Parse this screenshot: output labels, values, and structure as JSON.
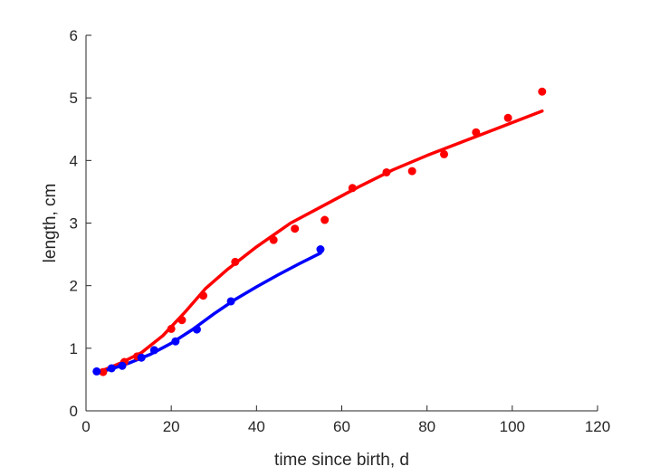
{
  "chart_data": {
    "type": "scatter",
    "title": "",
    "xlabel": "time since birth, d",
    "ylabel": "length, cm",
    "xlim": [
      0,
      120
    ],
    "ylim": [
      0,
      6
    ],
    "xticks": [
      0,
      20,
      40,
      60,
      80,
      100,
      120
    ],
    "yticks": [
      0,
      1,
      2,
      3,
      4,
      5,
      6
    ],
    "grid": false,
    "legend": "none",
    "series": [
      {
        "color": "#ff0000",
        "points": [
          [
            4,
            0.62
          ],
          [
            9,
            0.78
          ],
          [
            12,
            0.87
          ],
          [
            20,
            1.31
          ],
          [
            22.5,
            1.45
          ],
          [
            27.5,
            1.84
          ],
          [
            35,
            2.38
          ],
          [
            44,
            2.73
          ],
          [
            49,
            2.91
          ],
          [
            56,
            3.05
          ],
          [
            62.5,
            3.56
          ],
          [
            70.5,
            3.81
          ],
          [
            76.5,
            3.83
          ],
          [
            84,
            4.1
          ],
          [
            91.5,
            4.45
          ],
          [
            99,
            4.68
          ],
          [
            107,
            5.1
          ]
        ],
        "fit": [
          [
            3,
            0.62
          ],
          [
            8,
            0.76
          ],
          [
            13,
            0.93
          ],
          [
            18,
            1.2
          ],
          [
            23,
            1.56
          ],
          [
            28,
            1.95
          ],
          [
            33,
            2.25
          ],
          [
            40,
            2.62
          ],
          [
            48,
            3.0
          ],
          [
            56,
            3.29
          ],
          [
            64,
            3.58
          ],
          [
            72,
            3.85
          ],
          [
            80,
            4.08
          ],
          [
            88,
            4.29
          ],
          [
            96,
            4.5
          ],
          [
            107,
            4.79
          ]
        ]
      },
      {
        "color": "#0000ff",
        "points": [
          [
            2.5,
            0.63
          ],
          [
            6,
            0.68
          ],
          [
            8.5,
            0.72
          ],
          [
            13,
            0.85
          ],
          [
            16,
            0.97
          ],
          [
            21,
            1.11
          ],
          [
            26,
            1.3
          ],
          [
            34,
            1.75
          ],
          [
            55,
            2.58
          ]
        ],
        "fit": [
          [
            2.5,
            0.61
          ],
          [
            6,
            0.67
          ],
          [
            10,
            0.76
          ],
          [
            15,
            0.9
          ],
          [
            20,
            1.08
          ],
          [
            25,
            1.3
          ],
          [
            30,
            1.55
          ],
          [
            35,
            1.78
          ],
          [
            40,
            1.98
          ],
          [
            45,
            2.17
          ],
          [
            50,
            2.35
          ],
          [
            55,
            2.52
          ]
        ]
      }
    ]
  }
}
